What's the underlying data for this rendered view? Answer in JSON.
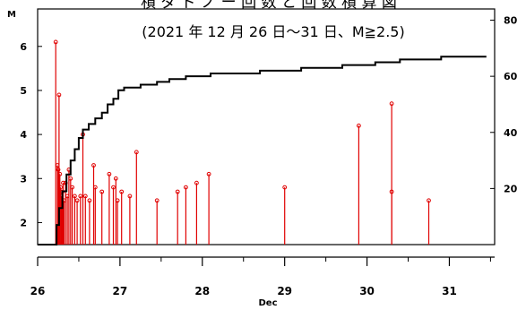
{
  "chart_data": {
    "type": "scatter",
    "title": "積  ダ  ド  ノ     ー  回  数  と  回  数  積  算  図",
    "subtitle": "(2021 年 12 月 26 日～31 日、M≧2.5)",
    "xlabel": "Dec",
    "ylabel_left": "M",
    "xlim": [
      26.0,
      31.55
    ],
    "ylim_left": [
      1.5,
      6.85
    ],
    "ylim_right": [
      0,
      84
    ],
    "x_ticks": [
      26,
      27,
      28,
      29,
      30,
      31
    ],
    "y_ticks_left": [
      2,
      3,
      4,
      5,
      6
    ],
    "y_ticks_right": [
      20,
      40,
      60,
      80
    ],
    "y_tick_labels_right": [
      "20",
      "40",
      "60",
      "80"
    ],
    "grid": false,
    "series": [
      {
        "values": [
          [
            26.22,
            6.1
          ],
          [
            26.24,
            3.3
          ],
          [
            26.25,
            3.2
          ],
          [
            26.26,
            4.9
          ],
          [
            26.27,
            3.1
          ],
          [
            26.28,
            2.8
          ],
          [
            26.29,
            2.6
          ],
          [
            26.3,
            2.7
          ],
          [
            26.31,
            2.9
          ],
          [
            26.32,
            2.5
          ],
          [
            26.34,
            2.9
          ],
          [
            26.36,
            2.6
          ],
          [
            26.38,
            3.2
          ],
          [
            26.4,
            3.0
          ],
          [
            26.42,
            2.8
          ],
          [
            26.45,
            2.6
          ],
          [
            26.48,
            2.5
          ],
          [
            26.52,
            2.6
          ],
          [
            26.55,
            4.0
          ],
          [
            26.58,
            2.6
          ],
          [
            26.63,
            2.5
          ],
          [
            26.68,
            3.3
          ],
          [
            26.7,
            2.8
          ],
          [
            26.78,
            2.7
          ],
          [
            26.87,
            3.1
          ],
          [
            26.92,
            2.8
          ],
          [
            26.95,
            3.0
          ],
          [
            26.97,
            2.5
          ],
          [
            27.02,
            2.7
          ],
          [
            27.12,
            2.6
          ],
          [
            27.2,
            3.6
          ],
          [
            27.45,
            2.5
          ],
          [
            27.7,
            2.7
          ],
          [
            27.8,
            2.8
          ],
          [
            27.93,
            2.9
          ],
          [
            28.08,
            3.1
          ],
          [
            29.0,
            2.8
          ],
          [
            29.9,
            4.2
          ],
          [
            30.3,
            4.7
          ],
          [
            30.3,
            2.7
          ],
          [
            30.75,
            2.5
          ]
        ]
      },
      {
        "values": [
          [
            26.0,
            0
          ],
          [
            26.22,
            0
          ],
          [
            26.23,
            7
          ],
          [
            26.26,
            13
          ],
          [
            26.3,
            19
          ],
          [
            26.35,
            25
          ],
          [
            26.4,
            30
          ],
          [
            26.45,
            34
          ],
          [
            26.5,
            38
          ],
          [
            26.55,
            41
          ],
          [
            26.62,
            43
          ],
          [
            26.7,
            45
          ],
          [
            26.78,
            47
          ],
          [
            26.85,
            50
          ],
          [
            26.92,
            52
          ],
          [
            26.98,
            55
          ],
          [
            27.05,
            56
          ],
          [
            27.25,
            57
          ],
          [
            27.45,
            58
          ],
          [
            27.6,
            59
          ],
          [
            27.8,
            60
          ],
          [
            28.1,
            61
          ],
          [
            28.7,
            62
          ],
          [
            29.2,
            63
          ],
          [
            29.7,
            64
          ],
          [
            30.1,
            65
          ],
          [
            30.4,
            66
          ],
          [
            30.9,
            67
          ],
          [
            31.45,
            67
          ]
        ]
      }
    ]
  }
}
